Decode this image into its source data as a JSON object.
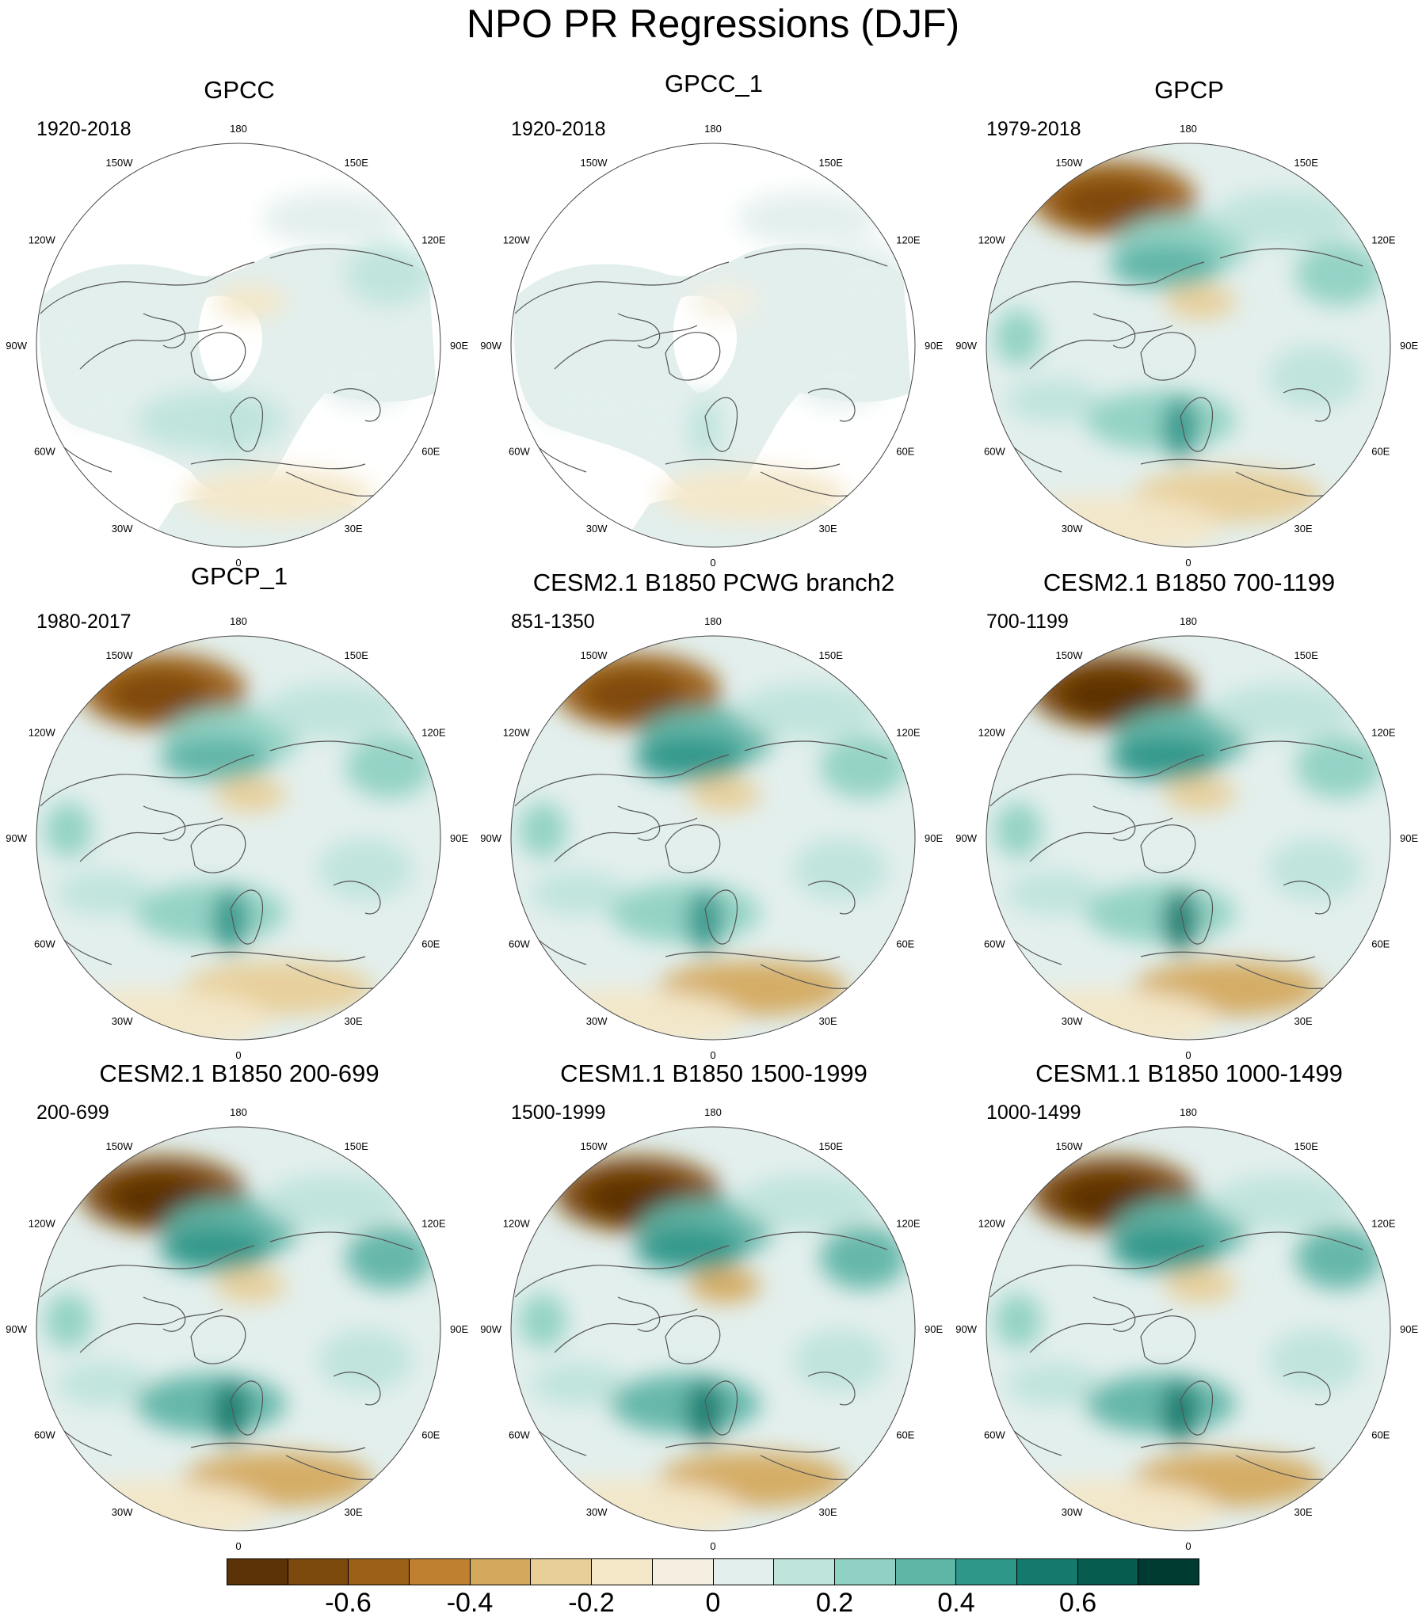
{
  "title": "NPO PR Regressions (DJF)",
  "lon_labels": [
    "180",
    "150E",
    "120E",
    "90E",
    "60E",
    "30E",
    "0",
    "30W",
    "60W",
    "90W",
    "120W",
    "150W"
  ],
  "panels": [
    {
      "title": "GPCC",
      "period": "1920-2018",
      "land_only": true,
      "strength": 0.35
    },
    {
      "title": "GPCC_1",
      "period": "1920-2018",
      "land_only": true,
      "strength": 0.3
    },
    {
      "title": "GPCP",
      "period": "1979-2018",
      "land_only": false,
      "strength": 0.85
    },
    {
      "title": "GPCP_1",
      "period": "1980-2017",
      "land_only": false,
      "strength": 0.85
    },
    {
      "title": "CESM2.1 B1850 PCWG branch2",
      "period": "851-1350",
      "land_only": false,
      "strength": 0.9
    },
    {
      "title": "CESM2.1 B1850 700-1199",
      "period": "700-1199",
      "land_only": false,
      "strength": 0.95
    },
    {
      "title": "CESM2.1 B1850 200-699",
      "period": "200-699",
      "land_only": false,
      "strength": 1.0
    },
    {
      "title": "CESM1.1 B1850 1500-1999",
      "period": "1500-1999",
      "land_only": false,
      "strength": 1.05
    },
    {
      "title": "CESM1.1 B1850 1000-1499",
      "period": "1000-1499",
      "land_only": false,
      "strength": 1.0
    }
  ],
  "colorbar": {
    "colors": [
      "#5c3306",
      "#7d4a0d",
      "#9c5f18",
      "#bf8130",
      "#d4a95e",
      "#e8cf98",
      "#f3e7c8",
      "#f4efe0",
      "#e3efed",
      "#bfe4dc",
      "#8fd2c3",
      "#5fb5a6",
      "#2f978a",
      "#137a6d",
      "#075c50",
      "#003b32"
    ],
    "labels": [
      "-0.6",
      "-0.4",
      "-0.2",
      "0",
      "0.2",
      "0.4",
      "0.6"
    ],
    "label_values": [
      -0.6,
      -0.4,
      -0.2,
      0,
      0.2,
      0.4,
      0.6
    ],
    "min": -0.8,
    "max": 0.8
  }
}
